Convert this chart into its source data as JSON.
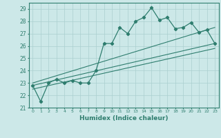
{
  "x": [
    0,
    1,
    2,
    3,
    4,
    5,
    6,
    7,
    8,
    9,
    10,
    11,
    12,
    13,
    14,
    15,
    16,
    17,
    18,
    19,
    20,
    21,
    22,
    23
  ],
  "main_line": [
    22.8,
    21.5,
    23.0,
    23.3,
    23.0,
    23.2,
    23.0,
    23.0,
    24.0,
    26.2,
    26.2,
    27.5,
    27.0,
    28.0,
    28.3,
    29.1,
    28.1,
    28.3,
    27.4,
    27.5,
    27.9,
    27.1,
    27.3,
    26.2
  ],
  "trend1_x": [
    0,
    23
  ],
  "trend1_y": [
    22.8,
    26.2
  ],
  "trend2_x": [
    0,
    23
  ],
  "trend2_y": [
    23.0,
    27.5
  ],
  "trend3_x": [
    0,
    23
  ],
  "trend3_y": [
    22.5,
    25.8
  ],
  "line_color": "#2e7d6e",
  "bg_color": "#cce8e8",
  "grid_color": "#aacfcf",
  "xlabel": "Humidex (Indice chaleur)",
  "ylim": [
    21,
    29.5
  ],
  "xlim": [
    -0.5,
    23.5
  ],
  "yticks": [
    21,
    22,
    23,
    24,
    25,
    26,
    27,
    28,
    29
  ],
  "xticks": [
    0,
    1,
    2,
    3,
    4,
    5,
    6,
    7,
    8,
    9,
    10,
    11,
    12,
    13,
    14,
    15,
    16,
    17,
    18,
    19,
    20,
    21,
    22,
    23
  ]
}
